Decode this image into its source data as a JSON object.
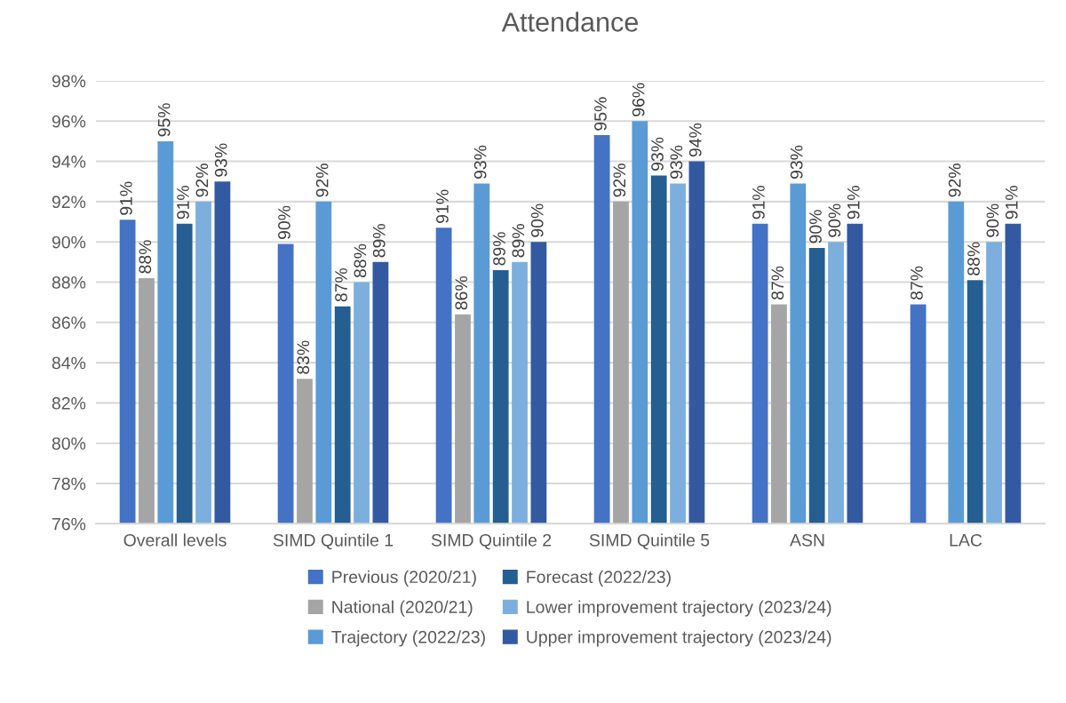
{
  "chart_data": {
    "type": "bar",
    "title": "Attendance",
    "categories": [
      "Overall levels",
      "SIMD Quintile 1",
      "SIMD Quintile 2",
      "SIMD Quintile 5",
      "ASN",
      "LAC"
    ],
    "series": [
      {
        "name": "Previous (2020/21)",
        "color": "#4472c4",
        "values": [
          91.1,
          89.9,
          90.7,
          95.3,
          90.9,
          86.9
        ],
        "value_labels": [
          "91%",
          "90%",
          "91%",
          "95%",
          "91%",
          "87%"
        ]
      },
      {
        "name": "National (2020/21)",
        "color": "#a5a5a5",
        "values": [
          88.2,
          83.2,
          86.4,
          92.0,
          86.9,
          null
        ],
        "value_labels": [
          "88%",
          "83%",
          "86%",
          "92%",
          "87%",
          null
        ]
      },
      {
        "name": "Trajectory (2022/23)",
        "color": "#5b9bd5",
        "values": [
          95.0,
          92.0,
          92.9,
          96.0,
          92.9,
          92.0
        ],
        "value_labels": [
          "95%",
          "92%",
          "93%",
          "96%",
          "93%",
          "92%"
        ]
      },
      {
        "name": "Forecast (2022/23)",
        "color": "#255e91",
        "values": [
          90.9,
          86.8,
          88.6,
          93.3,
          89.7,
          88.1
        ],
        "value_labels": [
          "91%",
          "87%",
          "89%",
          "93%",
          "90%",
          "88%"
        ]
      },
      {
        "name": "Lower improvement trajectory (2023/24)",
        "color": "#7cafdd",
        "values": [
          92.0,
          88.0,
          89.0,
          92.9,
          90.0,
          90.0
        ],
        "value_labels": [
          "92%",
          "88%",
          "89%",
          "93%",
          "90%",
          "90%"
        ]
      },
      {
        "name": "Upper improvement trajectory (2023/24)",
        "color": "#335aa1",
        "values": [
          93.0,
          89.0,
          90.0,
          94.0,
          90.9,
          90.9
        ],
        "value_labels": [
          "93%",
          "89%",
          "90%",
          "94%",
          "91%",
          "91%"
        ]
      }
    ],
    "ylim": [
      76,
      98
    ],
    "yticks": [
      {
        "value": 76,
        "label": "76%"
      },
      {
        "value": 78,
        "label": "78%"
      },
      {
        "value": 80,
        "label": "80%"
      },
      {
        "value": 82,
        "label": "82%"
      },
      {
        "value": 84,
        "label": "84%"
      },
      {
        "value": 86,
        "label": "86%"
      },
      {
        "value": 88,
        "label": "88%"
      },
      {
        "value": 90,
        "label": "90%"
      },
      {
        "value": 92,
        "label": "92%"
      },
      {
        "value": 94,
        "label": "94%"
      },
      {
        "value": 96,
        "label": "96%"
      },
      {
        "value": 98,
        "label": "98%"
      }
    ],
    "grid": "y",
    "legend": "bottom"
  }
}
